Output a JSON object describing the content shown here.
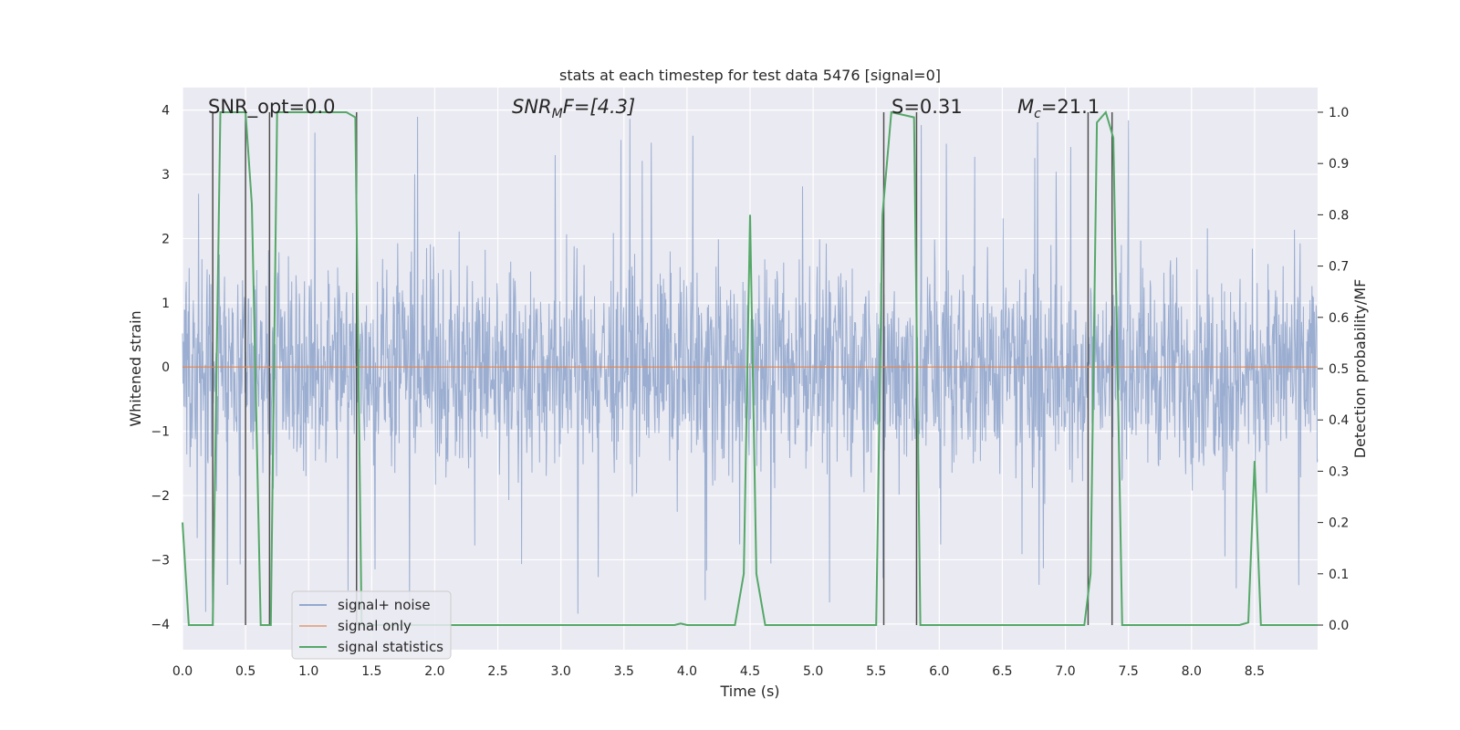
{
  "chart_data": {
    "type": "line",
    "title": "stats at each timestep for test data 5476 [signal=0]",
    "xlabel": "Time (s)",
    "ylabel_left": "Whitened strain",
    "ylabel_right": "Detection probability/MF",
    "xlim": [
      0,
      9.0
    ],
    "ylim_left": [
      -4.4,
      4.35
    ],
    "ylim_right": [
      -0.048,
      1.048
    ],
    "x_ticks": [
      0.0,
      0.5,
      1.0,
      1.5,
      2.0,
      2.5,
      3.0,
      3.5,
      4.0,
      4.5,
      5.0,
      5.5,
      6.0,
      6.5,
      7.0,
      7.5,
      8.0,
      8.5
    ],
    "x_tick_labels": [
      "0.0",
      "0.5",
      "1.0",
      "1.5",
      "2.0",
      "2.5",
      "3.0",
      "3.5",
      "4.0",
      "4.5",
      "5.0",
      "5.5",
      "6.0",
      "6.5",
      "7.0",
      "7.5",
      "8.0",
      "8.5"
    ],
    "y_left_ticks": [
      -4,
      -3,
      -2,
      -1,
      0,
      1,
      2,
      3,
      4
    ],
    "y_left_tick_labels": [
      "−4",
      "−3",
      "−2",
      "−1",
      "0",
      "1",
      "2",
      "3",
      "4"
    ],
    "y_right_ticks": [
      0.0,
      0.1,
      0.2,
      0.3,
      0.4,
      0.5,
      0.6,
      0.7,
      0.8,
      0.9,
      1.0
    ],
    "y_right_tick_labels": [
      "0.0",
      "0.1",
      "0.2",
      "0.3",
      "0.4",
      "0.5",
      "0.6",
      "0.7",
      "0.8",
      "0.9",
      "1.0"
    ],
    "annotations": {
      "snr_opt": "SNR_opt=0.0",
      "snr_mf_base": "SNR",
      "snr_mf_sub": "M",
      "snr_mf_tail": "F=[4.3]",
      "s_val": "S=0.31",
      "mc_base": "M",
      "mc_sub": "c",
      "mc_tail": "=21.1"
    },
    "legend": {
      "location": "lower-left",
      "entries": [
        "signal+ noise",
        "signal only",
        "signal statistics"
      ]
    },
    "series": [
      {
        "name": "signal+ noise",
        "axis": "left",
        "color": "#4c72b0",
        "note": "whitened strain noise, roughly ±2 with spikes to ±4",
        "amplitude": 1.6
      },
      {
        "name": "signal only",
        "axis": "left",
        "color": "#dd8452",
        "value": 0
      },
      {
        "name": "signal statistics",
        "axis": "right",
        "color": "#55a868",
        "x": [
          0.0,
          0.05,
          0.1,
          0.24,
          0.3,
          0.5,
          0.55,
          0.62,
          0.7,
          0.75,
          1.0,
          1.3,
          1.37,
          1.42,
          3.9,
          3.95,
          4.0,
          4.38,
          4.45,
          4.5,
          4.55,
          4.62,
          5.5,
          5.55,
          5.62,
          5.8,
          5.85,
          7.15,
          7.2,
          7.25,
          7.32,
          7.38,
          7.45,
          8.38,
          8.45,
          8.5,
          8.55,
          9.0
        ],
        "y": [
          0.2,
          0.0,
          0.0,
          0.0,
          1.0,
          1.0,
          0.82,
          0.0,
          0.0,
          1.0,
          1.0,
          1.0,
          0.99,
          0.0,
          0.0,
          0.003,
          0.0,
          0.0,
          0.1,
          0.8,
          0.1,
          0.0,
          0.0,
          0.8,
          1.0,
          0.99,
          0.0,
          0.0,
          0.1,
          0.98,
          1.0,
          0.95,
          0.0,
          0.0,
          0.005,
          0.32,
          0.0,
          0.0
        ]
      }
    ],
    "vertical_markers": [
      0.24,
      0.5,
      0.69,
      1.38,
      5.56,
      5.82,
      7.18,
      7.37
    ]
  }
}
